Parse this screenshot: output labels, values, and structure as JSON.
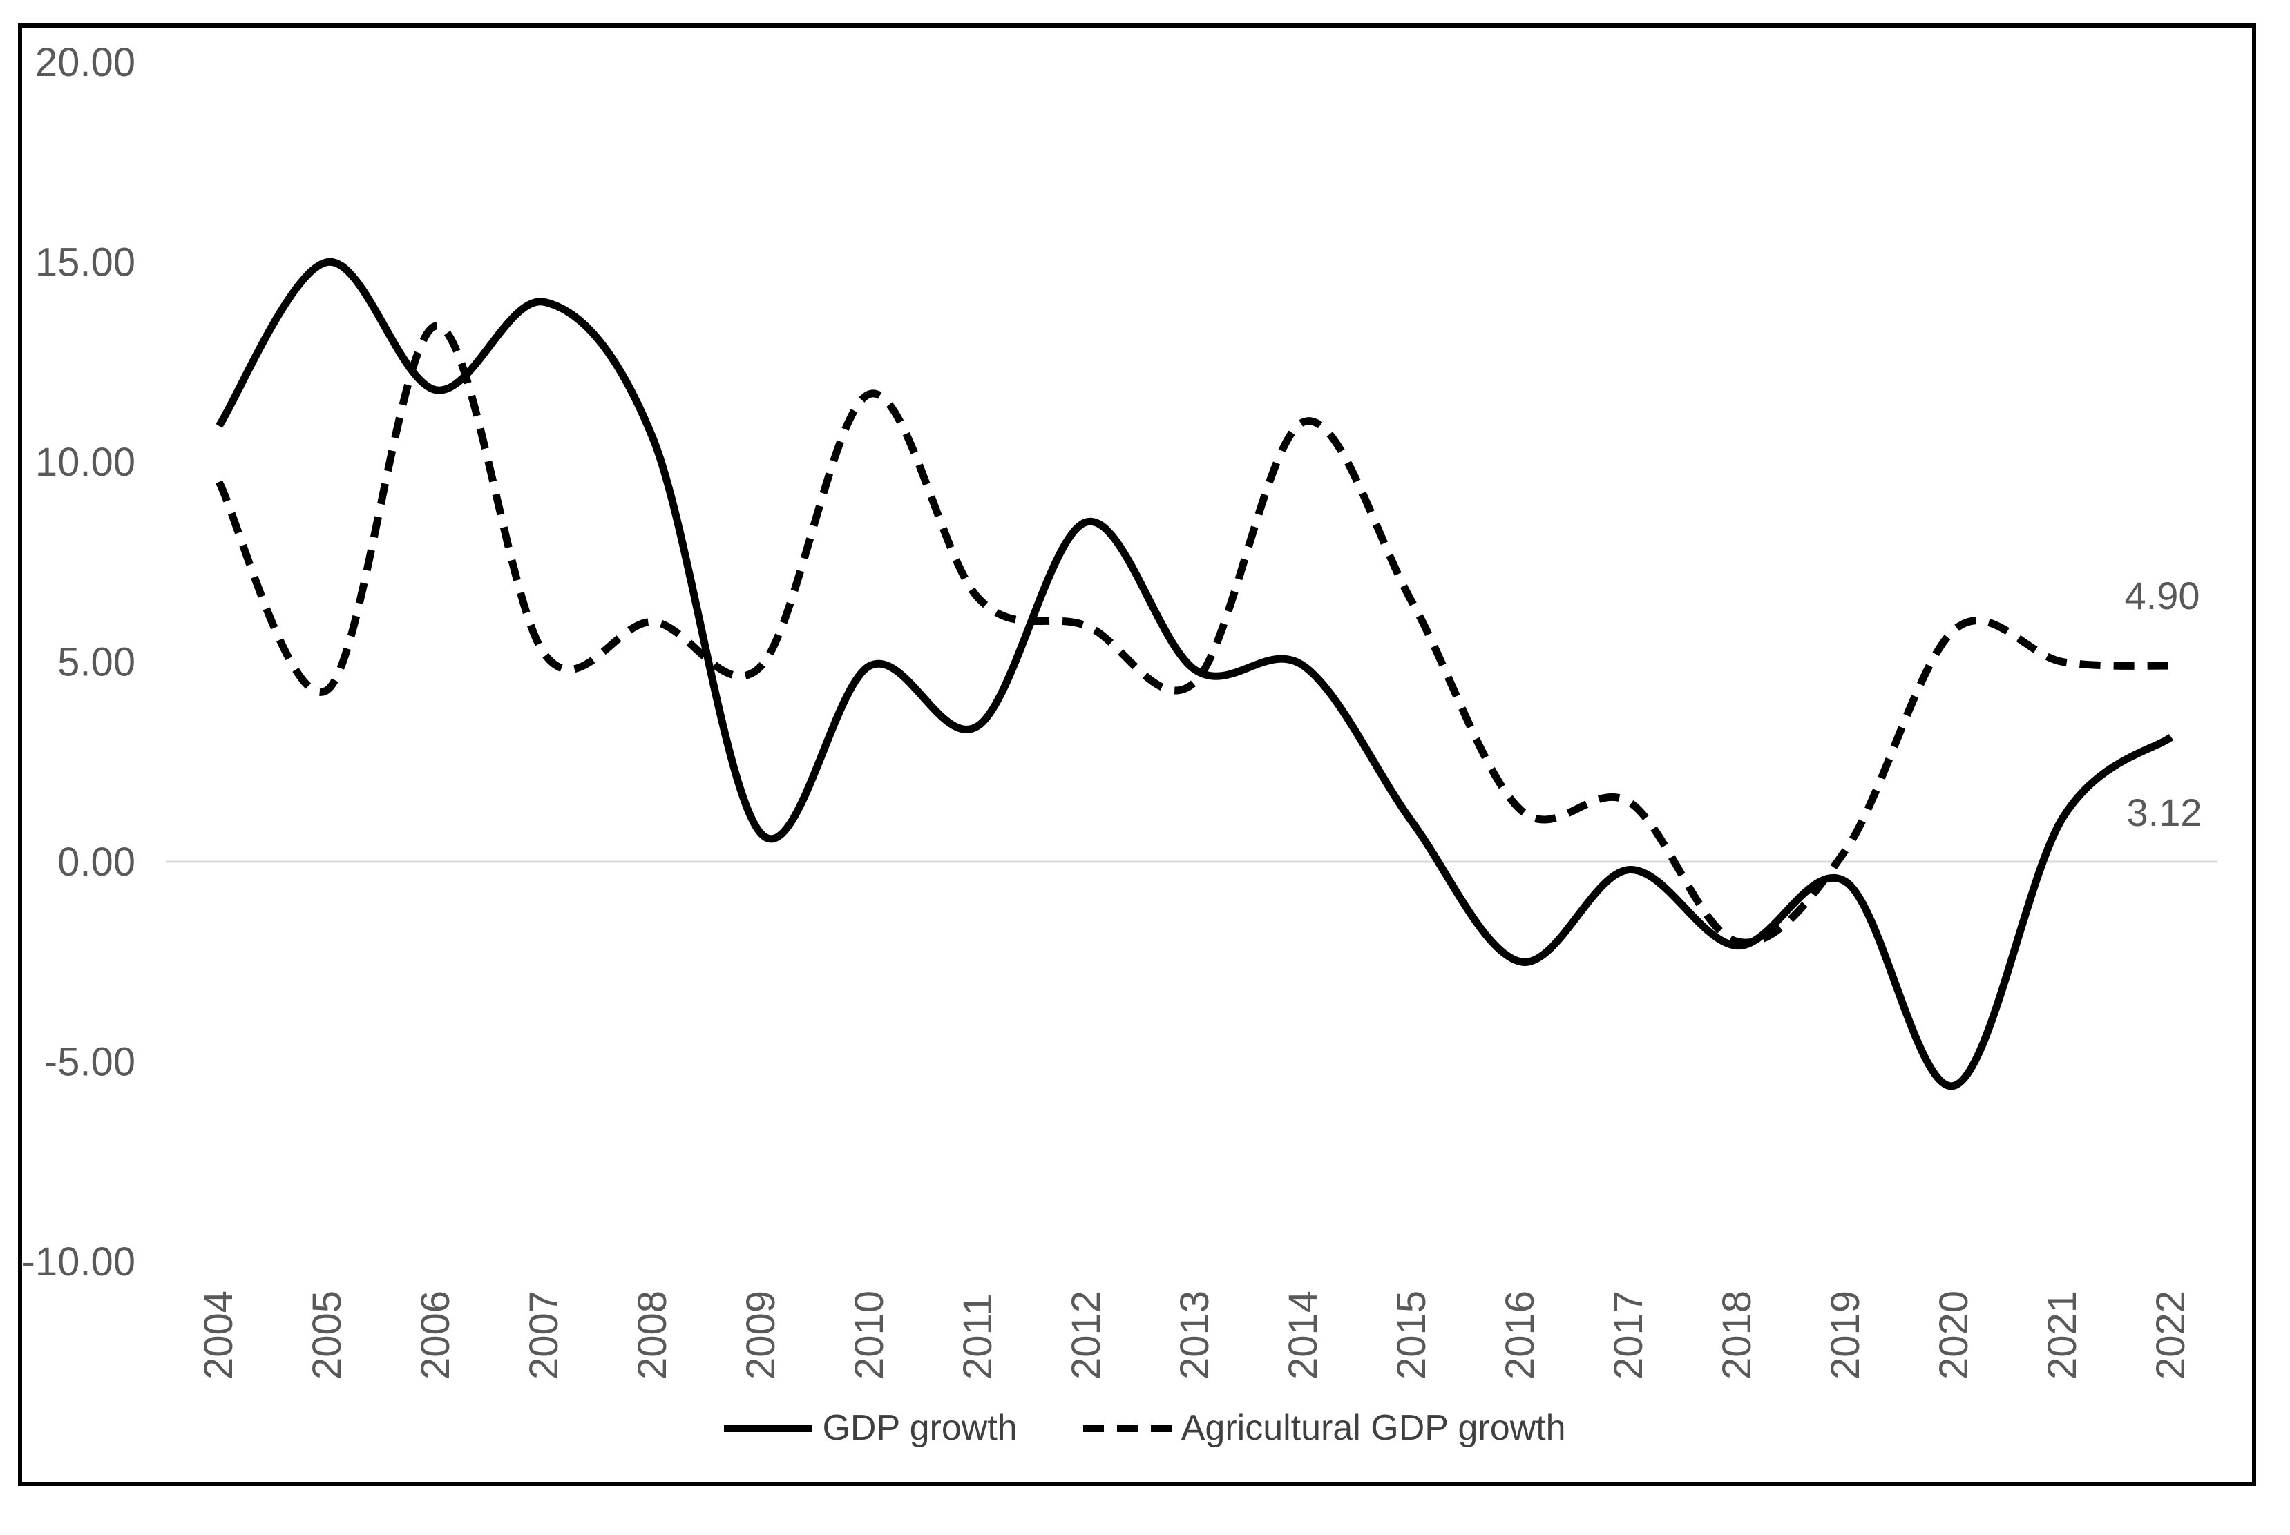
{
  "chart_data": {
    "type": "line",
    "title": "",
    "xlabel": "",
    "ylabel": "",
    "categories": [
      "2004",
      "2005",
      "2006",
      "2007",
      "2008",
      "2009",
      "2010",
      "2011",
      "2012",
      "2013",
      "2014",
      "2015",
      "2016",
      "2017",
      "2018",
      "2019",
      "2020",
      "2021",
      "2022"
    ],
    "series": [
      {
        "name": "GDP growth",
        "line_style": "solid",
        "values": [
          10.9,
          15.0,
          11.8,
          14.0,
          10.6,
          0.7,
          4.9,
          3.4,
          8.5,
          4.8,
          4.9,
          1.0,
          -2.5,
          -0.2,
          -2.1,
          -0.5,
          -5.6,
          1.1,
          3.12
        ],
        "end_label": "3.12"
      },
      {
        "name": "Agricultural GDP growth",
        "line_style": "dashed",
        "values": [
          9.5,
          4.3,
          13.4,
          5.2,
          6.0,
          4.9,
          11.7,
          6.6,
          5.9,
          4.5,
          11.0,
          6.5,
          1.3,
          1.5,
          -2.0,
          0.3,
          5.8,
          5.0,
          4.9
        ],
        "end_label": "4.90"
      }
    ],
    "y_axis": {
      "ticks": [
        "20.00",
        "15.00",
        "10.00",
        "5.00",
        "0.00",
        "-5.00",
        "-10.00"
      ],
      "range": [
        -10,
        20
      ]
    },
    "grid": "zero-line-only",
    "legend_position": "bottom",
    "colors": {
      "line": "#000000",
      "tick_label": "#595959",
      "grid_line": "#d9d9d9",
      "border": "#000000",
      "legend_text": "#3f3f3f"
    }
  }
}
